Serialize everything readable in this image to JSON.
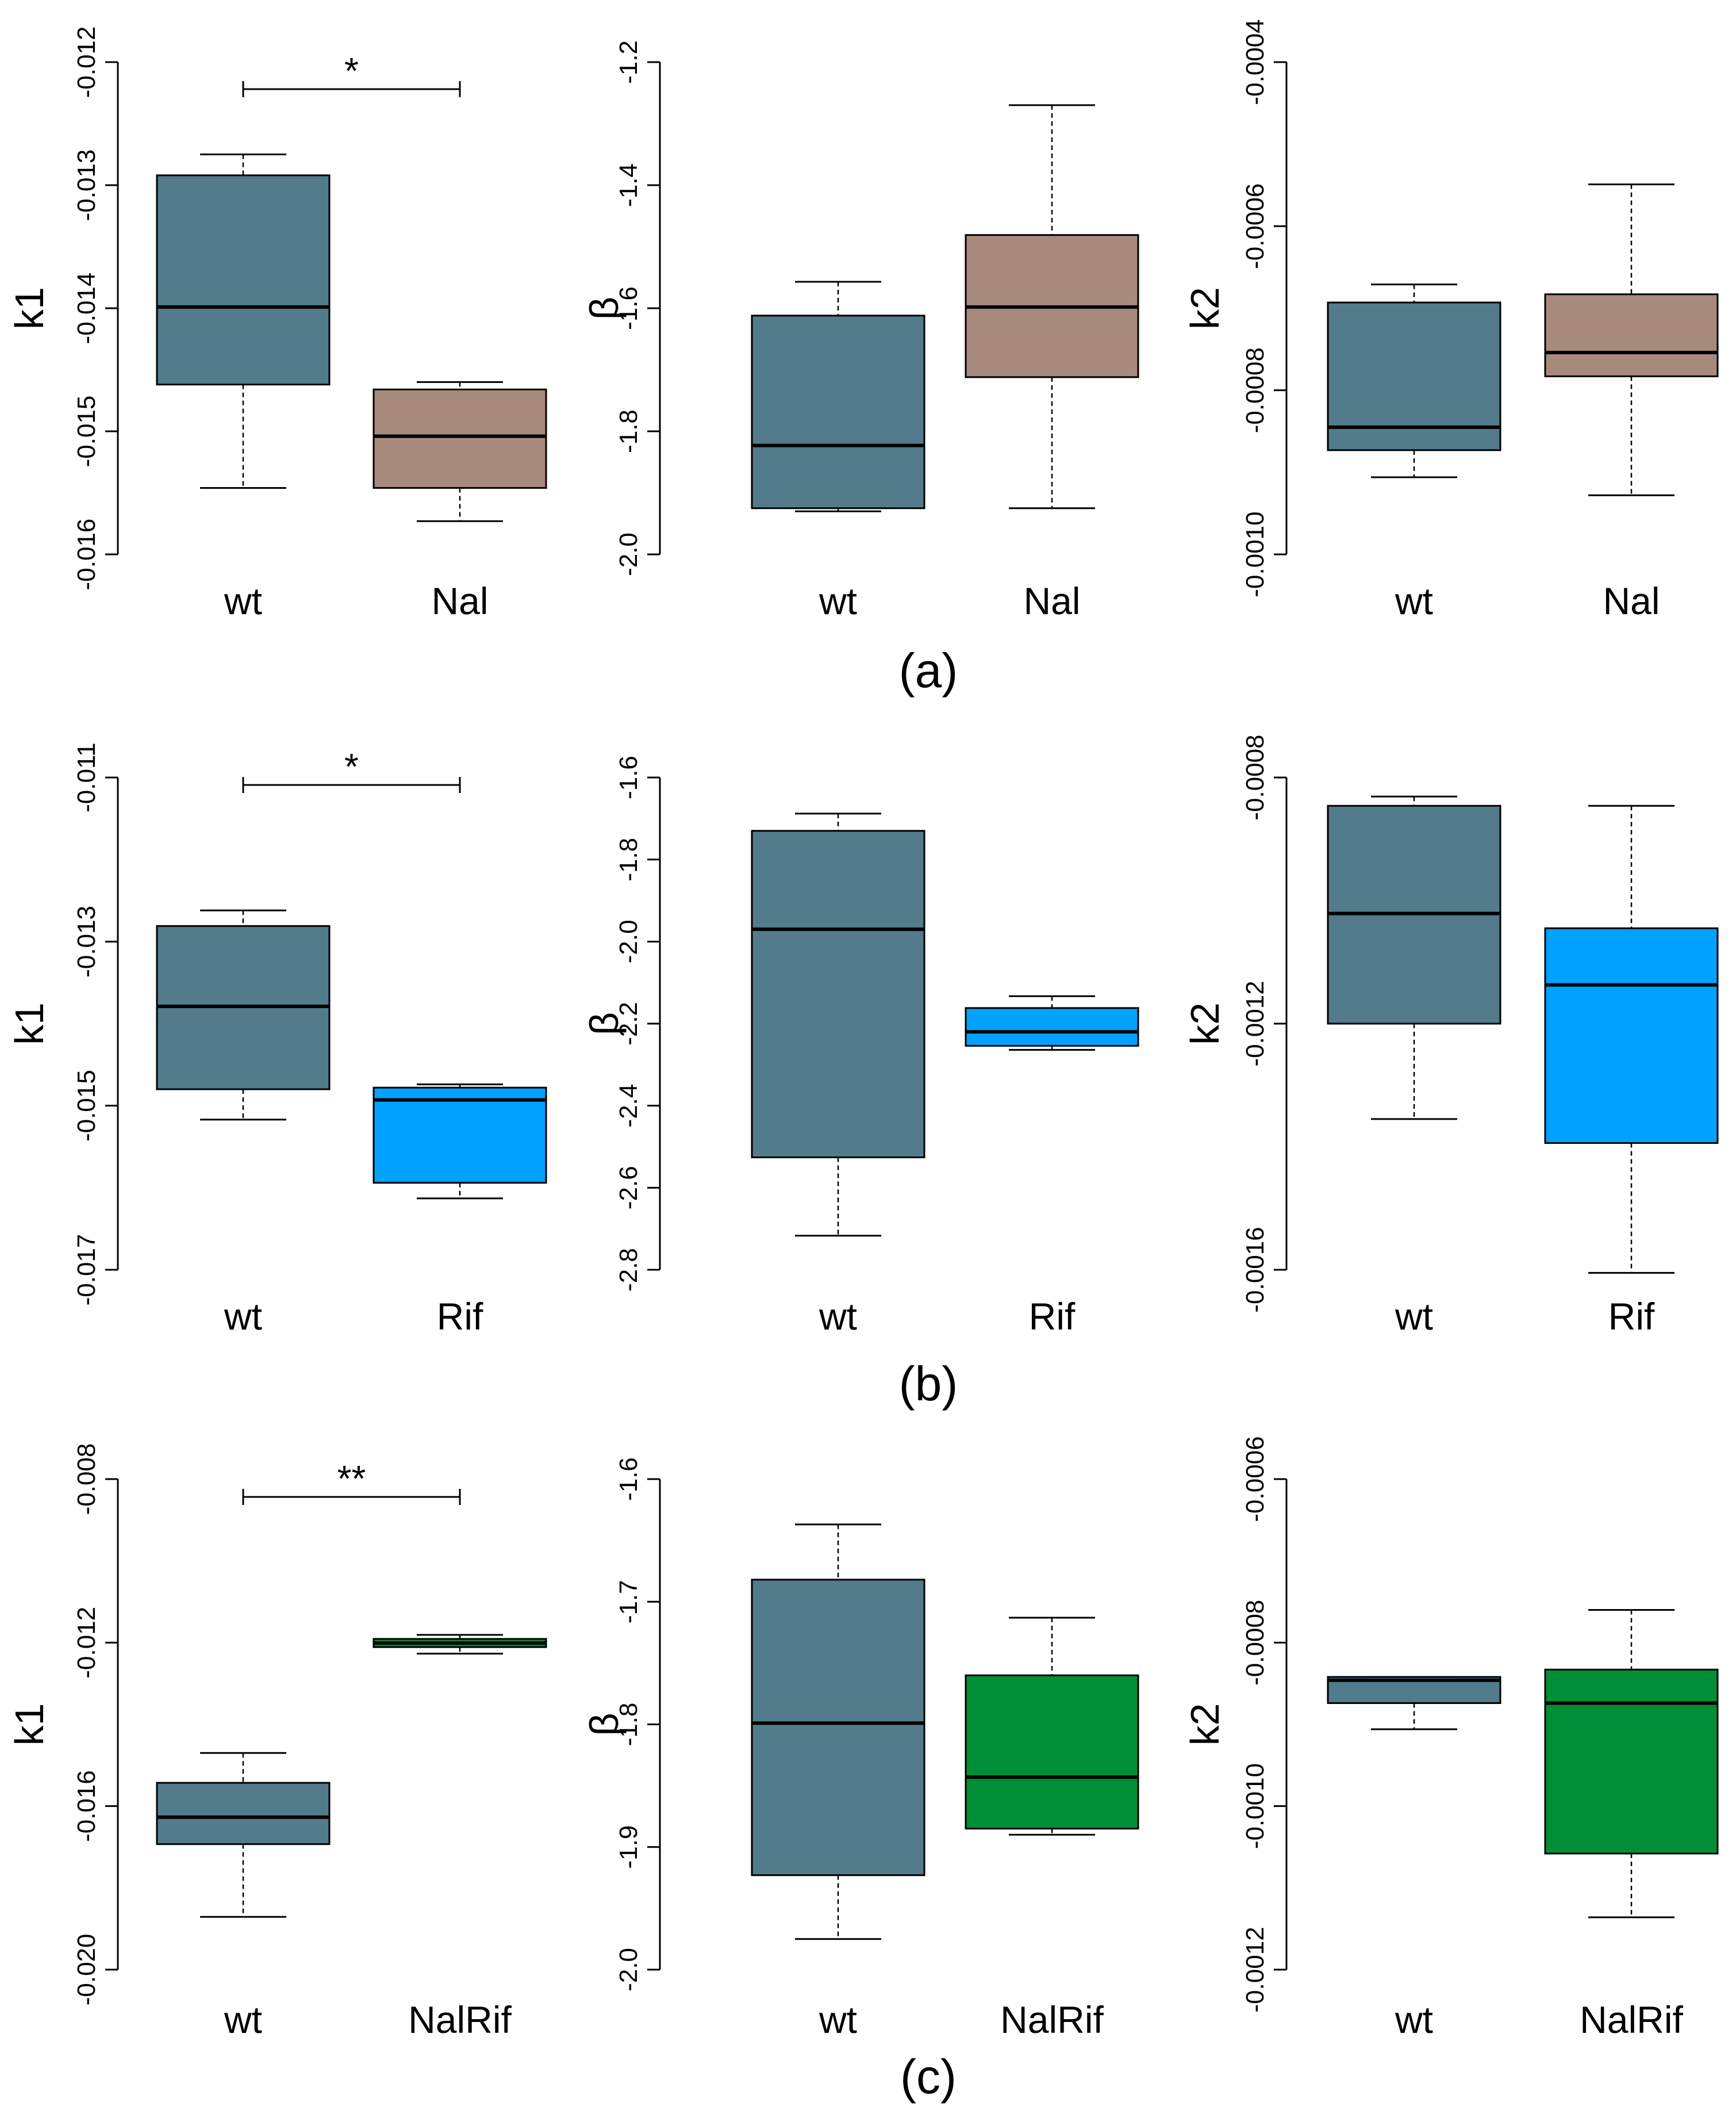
{
  "chart_data": [
    {
      "type": "box",
      "group": "a",
      "ylabel": "k1",
      "ylim": [
        -0.016,
        -0.012
      ],
      "yticks": [
        -0.012,
        -0.013,
        -0.014,
        -0.015,
        -0.016
      ],
      "tick_labels": [
        "-0.012",
        "-0.013",
        "-0.014",
        "-0.015",
        "-0.016"
      ],
      "categories": [
        "wt",
        "Nal"
      ],
      "boxes": [
        {
          "category": "wt",
          "min": -0.01546,
          "q1": -0.01462,
          "median": -0.01399,
          "q3": -0.01292,
          "max": -0.01275,
          "color": "#527b8b"
        },
        {
          "category": "Nal",
          "min": -0.01573,
          "q1": -0.01546,
          "median": -0.01504,
          "q3": -0.01466,
          "max": -0.0146,
          "color": "#a78a7c"
        }
      ],
      "significance": "*",
      "panel_label": ""
    },
    {
      "type": "box",
      "group": "a",
      "ylabel": "β",
      "ylim": [
        -2.0,
        -1.2
      ],
      "yticks": [
        -1.2,
        -1.4,
        -1.6,
        -1.8,
        -2.0
      ],
      "tick_labels": [
        "-1.2",
        "-1.4",
        "-1.6",
        "-1.8",
        "-2.0"
      ],
      "categories": [
        "wt",
        "Nal"
      ],
      "boxes": [
        {
          "category": "wt",
          "min": -1.93,
          "q1": -1.925,
          "median": -1.823,
          "q3": -1.612,
          "max": -1.557,
          "color": "#527b8b"
        },
        {
          "category": "Nal",
          "min": -1.925,
          "q1": -1.712,
          "median": -1.598,
          "q3": -1.481,
          "max": -1.27,
          "color": "#a78a7c"
        }
      ],
      "significance": "",
      "panel_label": "(a)"
    },
    {
      "type": "box",
      "group": "a",
      "ylabel": "k2",
      "ylim": [
        -0.001,
        -0.0004
      ],
      "yticks": [
        -0.0004,
        -0.0006,
        -0.0008,
        -0.001
      ],
      "tick_labels": [
        "-0.0004",
        "-0.0006",
        "-0.0008",
        "-0.0010"
      ],
      "categories": [
        "wt",
        "Nal"
      ],
      "boxes": [
        {
          "category": "wt",
          "min": -0.000906,
          "q1": -0.000873,
          "median": -0.000845,
          "q3": -0.000693,
          "max": -0.000671,
          "color": "#527b8b"
        },
        {
          "category": "Nal",
          "min": -0.000928,
          "q1": -0.000783,
          "median": -0.000754,
          "q3": -0.000683,
          "max": -0.000549,
          "color": "#a78a7c"
        }
      ],
      "significance": "",
      "panel_label": ""
    },
    {
      "type": "box",
      "group": "b",
      "ylabel": "k1",
      "ylim": [
        -0.017,
        -0.011
      ],
      "yticks": [
        -0.011,
        -0.013,
        -0.015,
        -0.017
      ],
      "tick_labels": [
        "-0.011",
        "-0.013",
        "-0.015",
        "-0.017"
      ],
      "categories": [
        "wt",
        "Rif"
      ],
      "boxes": [
        {
          "category": "wt",
          "min": -0.01517,
          "q1": -0.0148,
          "median": -0.01379,
          "q3": -0.01281,
          "max": -0.01262,
          "color": "#527b8b"
        },
        {
          "category": "Rif",
          "min": -0.01613,
          "q1": -0.01594,
          "median": -0.01493,
          "q3": -0.01478,
          "max": -0.01474,
          "color": "#00a2ff"
        }
      ],
      "significance": "*",
      "panel_label": ""
    },
    {
      "type": "box",
      "group": "b",
      "ylabel": "β",
      "ylim": [
        -2.8,
        -1.6
      ],
      "yticks": [
        -1.6,
        -1.8,
        -2.0,
        -2.2,
        -2.4,
        -2.6,
        -2.8
      ],
      "tick_labels": [
        "-1.6",
        "-1.8",
        "-2.0",
        "-2.2",
        "-2.4",
        "-2.6",
        "-2.8"
      ],
      "categories": [
        "wt",
        "Rif"
      ],
      "boxes": [
        {
          "category": "wt",
          "min": -2.717,
          "q1": -2.526,
          "median": -1.97,
          "q3": -1.73,
          "max": -1.688,
          "color": "#527b8b"
        },
        {
          "category": "Rif",
          "min": -2.264,
          "q1": -2.254,
          "median": -2.22,
          "q3": -2.162,
          "max": -2.133,
          "color": "#00a2ff"
        }
      ],
      "significance": "",
      "panel_label": "(b)"
    },
    {
      "type": "box",
      "group": "b",
      "ylabel": "k2",
      "ylim": [
        -0.0016,
        -0.0008
      ],
      "yticks": [
        -0.0008,
        -0.0012,
        -0.0016
      ],
      "tick_labels": [
        "-0.0008",
        "-0.0012",
        "-0.0016"
      ],
      "categories": [
        "wt",
        "Rif"
      ],
      "boxes": [
        {
          "category": "wt",
          "min": -0.001355,
          "q1": -0.0012,
          "median": -0.001021,
          "q3": -0.000846,
          "max": -0.000831,
          "color": "#527b8b"
        },
        {
          "category": "Rif",
          "min": -0.001605,
          "q1": -0.001394,
          "median": -0.001137,
          "q3": -0.001045,
          "max": -0.000846,
          "color": "#00a2ff"
        }
      ],
      "significance": "",
      "panel_label": ""
    },
    {
      "type": "box",
      "group": "c",
      "ylabel": "k1",
      "ylim": [
        -0.02,
        -0.008
      ],
      "yticks": [
        -0.008,
        -0.012,
        -0.016,
        -0.02
      ],
      "tick_labels": [
        "-0.008",
        "-0.012",
        "-0.016",
        "-0.020"
      ],
      "categories": [
        "wt",
        "NalRif"
      ],
      "boxes": [
        {
          "category": "wt",
          "min": -0.01871,
          "q1": -0.01693,
          "median": -0.01627,
          "q3": -0.01543,
          "max": -0.0147,
          "color": "#527b8b"
        },
        {
          "category": "NalRif",
          "min": -0.01227,
          "q1": -0.01211,
          "median": -0.01201,
          "q3": -0.01191,
          "max": -0.01181,
          "color": "#008f36"
        }
      ],
      "significance": "**",
      "panel_label": ""
    },
    {
      "type": "box",
      "group": "c",
      "ylabel": "β",
      "ylim": [
        -2.0,
        -1.6
      ],
      "yticks": [
        -1.6,
        -1.7,
        -1.8,
        -1.9,
        -2.0
      ],
      "tick_labels": [
        "-1.6",
        "-1.7",
        "-1.8",
        "-1.9",
        "-2.0"
      ],
      "categories": [
        "wt",
        "NalRif"
      ],
      "boxes": [
        {
          "category": "wt",
          "min": -1.975,
          "q1": -1.923,
          "median": -1.799,
          "q3": -1.682,
          "max": -1.637,
          "color": "#527b8b"
        },
        {
          "category": "NalRif",
          "min": -1.89,
          "q1": -1.885,
          "median": -1.843,
          "q3": -1.76,
          "max": -1.713,
          "color": "#008f36"
        }
      ],
      "significance": "",
      "panel_label": "(c)"
    },
    {
      "type": "box",
      "group": "c",
      "ylabel": "k2",
      "ylim": [
        -0.0012,
        -0.0006
      ],
      "yticks": [
        -0.0006,
        -0.0008,
        -0.001,
        -0.0012
      ],
      "tick_labels": [
        "-0.0006",
        "-0.0008",
        "-0.0010",
        "-0.0012"
      ],
      "categories": [
        "wt",
        "NalRif"
      ],
      "boxes": [
        {
          "category": "wt",
          "min": -0.000906,
          "q1": -0.000874,
          "median": -0.000846,
          "q3": -0.000842,
          "max": -0.000842,
          "color": "#527b8b"
        },
        {
          "category": "NalRif",
          "min": -0.001136,
          "q1": -0.001058,
          "median": -0.000874,
          "q3": -0.000833,
          "max": -0.00076,
          "color": "#008f36"
        }
      ],
      "significance": "",
      "panel_label": ""
    }
  ]
}
